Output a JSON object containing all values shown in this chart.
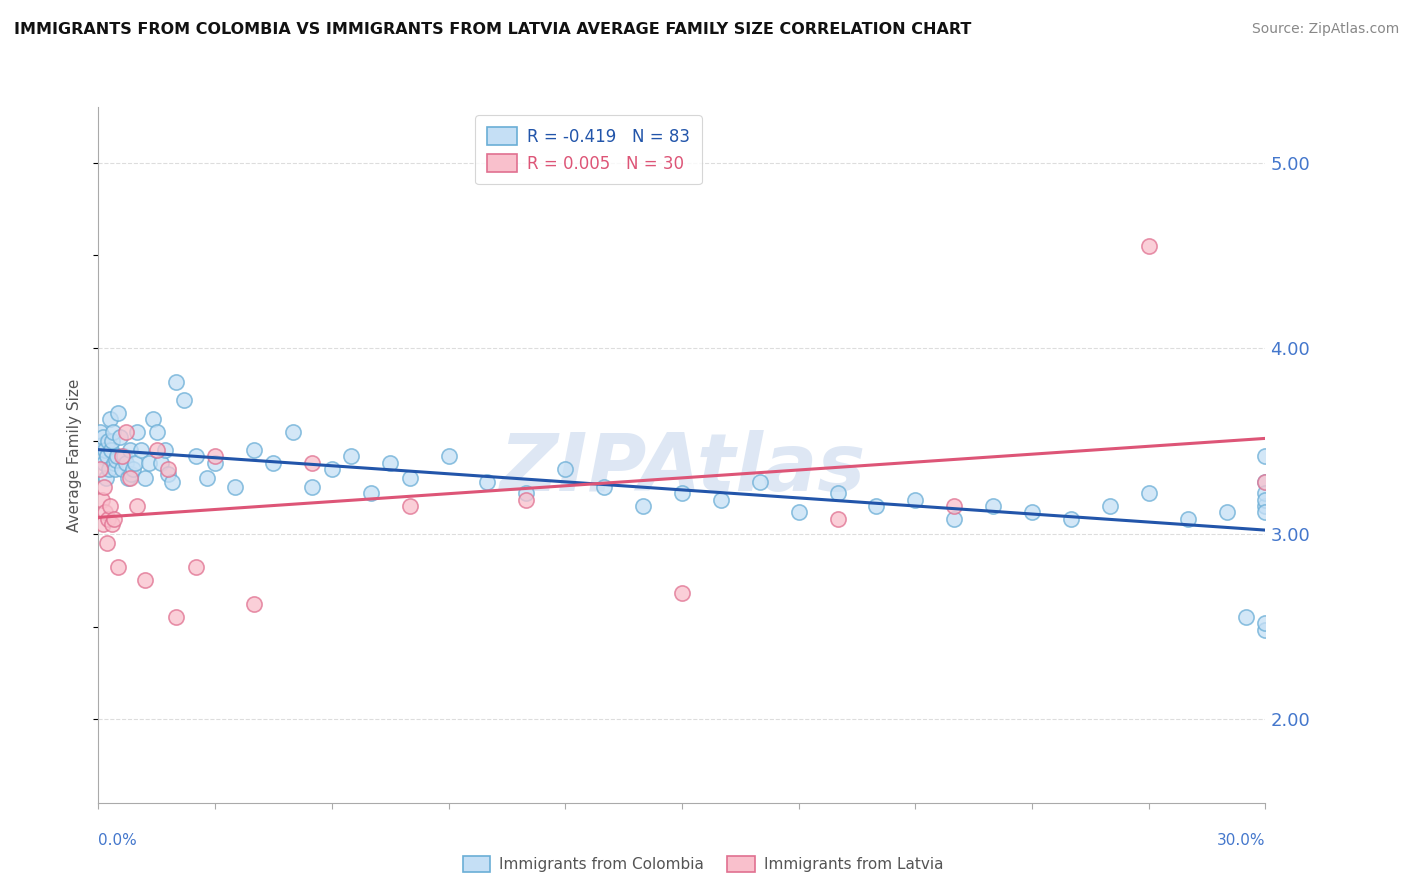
{
  "title": "IMMIGRANTS FROM COLOMBIA VS IMMIGRANTS FROM LATVIA AVERAGE FAMILY SIZE CORRELATION CHART",
  "source": "Source: ZipAtlas.com",
  "ylabel": "Average Family Size",
  "xmin": 0.0,
  "xmax": 30.0,
  "ymin": 1.55,
  "ymax": 5.3,
  "right_yticks": [
    2.0,
    3.0,
    4.0,
    5.0
  ],
  "colombia_color": "#c5dff5",
  "colombia_edge": "#6aaed6",
  "latvia_color": "#f9c0cc",
  "latvia_edge": "#e07090",
  "trend_colombia_color": "#2255aa",
  "trend_latvia_color": "#dd5577",
  "R_colombia": -0.419,
  "N_colombia": 83,
  "R_latvia": 0.005,
  "N_latvia": 30,
  "colombia_x": [
    0.05,
    0.08,
    0.1,
    0.12,
    0.15,
    0.18,
    0.2,
    0.22,
    0.25,
    0.28,
    0.3,
    0.32,
    0.35,
    0.38,
    0.4,
    0.42,
    0.45,
    0.48,
    0.5,
    0.55,
    0.6,
    0.65,
    0.7,
    0.75,
    0.8,
    0.85,
    0.9,
    0.95,
    1.0,
    1.1,
    1.2,
    1.3,
    1.4,
    1.5,
    1.6,
    1.7,
    1.8,
    1.9,
    2.0,
    2.2,
    2.5,
    2.8,
    3.0,
    3.5,
    4.0,
    4.5,
    5.0,
    5.5,
    6.0,
    6.5,
    7.0,
    7.5,
    8.0,
    9.0,
    10.0,
    11.0,
    12.0,
    13.0,
    14.0,
    15.0,
    16.0,
    17.0,
    18.0,
    19.0,
    20.0,
    21.0,
    22.0,
    23.0,
    24.0,
    25.0,
    26.0,
    27.0,
    28.0,
    29.0,
    29.5,
    30.0,
    30.0,
    30.0,
    30.0,
    30.0,
    30.0,
    30.0,
    30.0
  ],
  "colombia_y": [
    3.55,
    3.48,
    3.42,
    3.52,
    3.38,
    3.45,
    3.3,
    3.42,
    3.5,
    3.35,
    3.62,
    3.45,
    3.5,
    3.55,
    3.38,
    3.35,
    3.4,
    3.42,
    3.65,
    3.52,
    3.35,
    3.42,
    3.38,
    3.3,
    3.45,
    3.32,
    3.35,
    3.38,
    3.55,
    3.45,
    3.3,
    3.38,
    3.62,
    3.55,
    3.38,
    3.45,
    3.32,
    3.28,
    3.82,
    3.72,
    3.42,
    3.3,
    3.38,
    3.25,
    3.45,
    3.38,
    3.55,
    3.25,
    3.35,
    3.42,
    3.22,
    3.38,
    3.3,
    3.42,
    3.28,
    3.22,
    3.35,
    3.25,
    3.15,
    3.22,
    3.18,
    3.28,
    3.12,
    3.22,
    3.15,
    3.18,
    3.08,
    3.15,
    3.12,
    3.08,
    3.15,
    3.22,
    3.08,
    3.12,
    2.55,
    2.48,
    2.52,
    3.28,
    3.15,
    3.42,
    3.22,
    3.18,
    3.12
  ],
  "latvia_x": [
    0.05,
    0.08,
    0.12,
    0.15,
    0.18,
    0.22,
    0.25,
    0.3,
    0.35,
    0.4,
    0.5,
    0.6,
    0.7,
    0.8,
    1.0,
    1.2,
    1.5,
    1.8,
    2.0,
    2.5,
    3.0,
    4.0,
    5.5,
    8.0,
    11.0,
    15.0,
    19.0,
    22.0,
    27.0,
    30.0
  ],
  "latvia_y": [
    3.35,
    3.18,
    3.05,
    3.25,
    3.12,
    2.95,
    3.08,
    3.15,
    3.05,
    3.08,
    2.82,
    3.42,
    3.55,
    3.3,
    3.15,
    2.75,
    3.45,
    3.35,
    2.55,
    2.82,
    3.42,
    2.62,
    3.38,
    3.15,
    3.18,
    2.68,
    3.08,
    3.15,
    4.55,
    3.28
  ],
  "background_color": "#ffffff",
  "grid_color": "#dddddd"
}
